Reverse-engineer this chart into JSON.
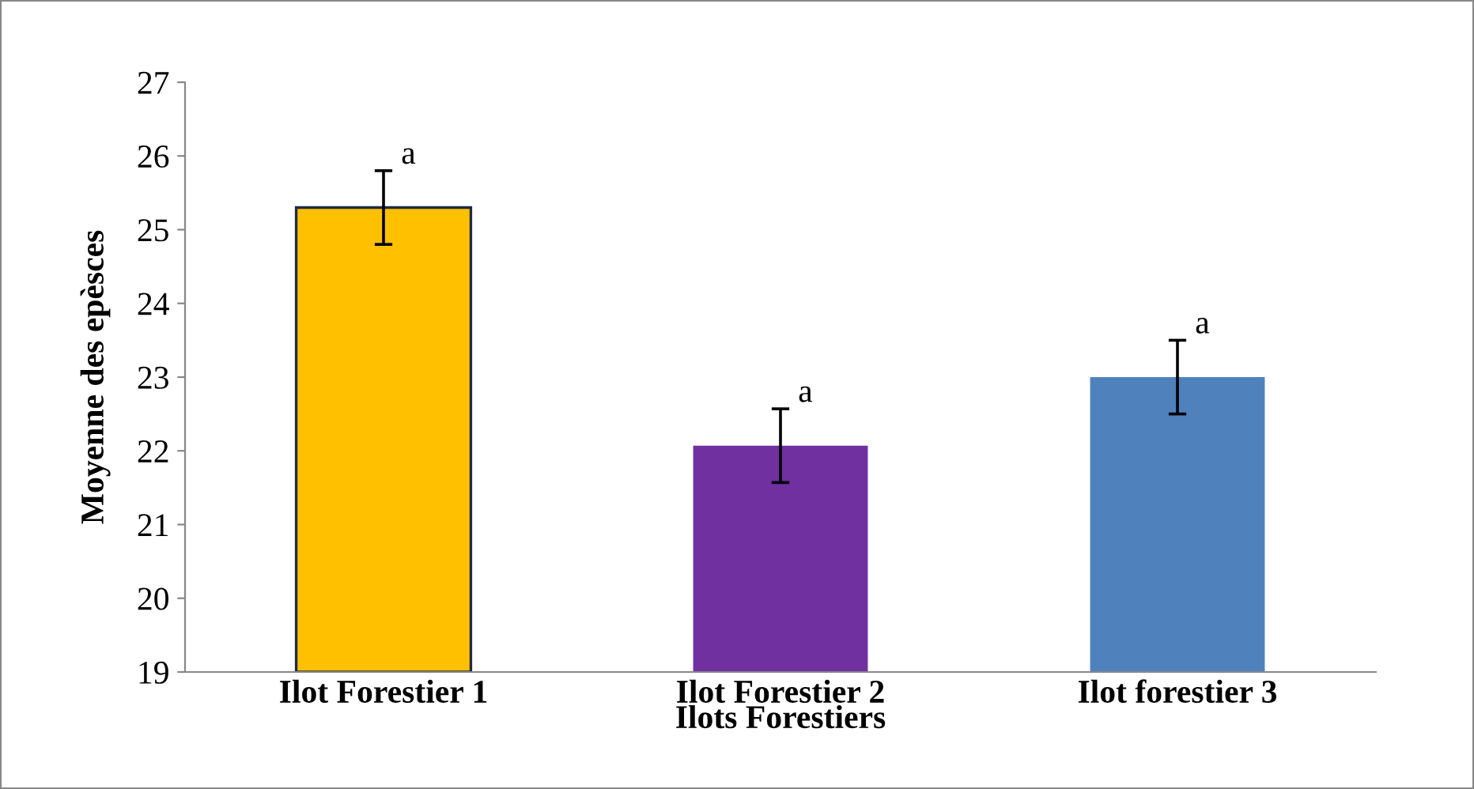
{
  "chart_data": {
    "type": "bar",
    "xlabel": "Ilots Forestiers",
    "ylabel": "Moyenne des epèsces",
    "categories": [
      "Ilot Forestier 1",
      "Ilot Forestier 2",
      "Ilot forestier 3"
    ],
    "values": [
      25.3,
      22.07,
      23.0
    ],
    "colors": [
      "#ffc000",
      "#7030a0",
      "#4f81bd"
    ],
    "errors": [
      0.5,
      0.5,
      0.5
    ],
    "ylim": [
      19,
      27
    ],
    "yticks": [
      19,
      20,
      21,
      22,
      23,
      24,
      25,
      26,
      27
    ],
    "grid": false,
    "annotations": [
      {
        "text": "a",
        "x": "Ilot Forestier 1",
        "y": 25.8
      },
      {
        "text": "a",
        "x": "Ilot Forestier 2",
        "y": 22.57
      },
      {
        "text": "a",
        "x": "Ilot forestier 3",
        "y": 23.5
      }
    ]
  }
}
